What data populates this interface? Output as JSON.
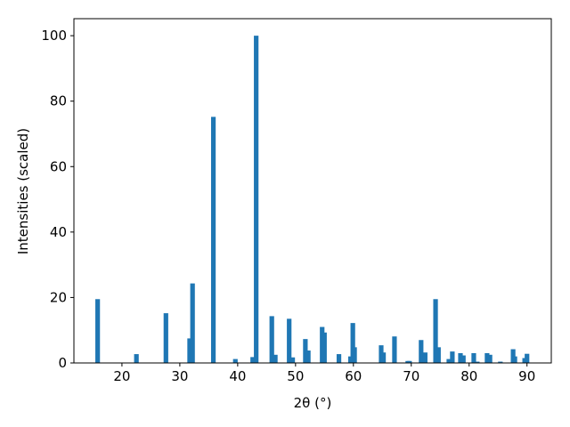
{
  "chart_data": {
    "type": "bar",
    "x_label": "2θ (°)",
    "y_label": "Intensities (scaled)",
    "color": "#1f77b4",
    "x": [
      15.8,
      22.5,
      27.6,
      31.7,
      32.2,
      35.8,
      39.6,
      42.6,
      43.2,
      45.9,
      46.5,
      48.9,
      49.5,
      51.7,
      52.2,
      54.6,
      55.0,
      57.5,
      59.5,
      59.9,
      60.2,
      64.8,
      65.2,
      67.1,
      69.4,
      69.7,
      71.7,
      72.4,
      74.2,
      74.7,
      76.5,
      77.1,
      78.5,
      79.0,
      80.8,
      81.4,
      83.1,
      83.6,
      85.4,
      87.6,
      87.9,
      89.6,
      90.0
    ],
    "values": [
      19.5,
      2.7,
      15.2,
      7.5,
      24.3,
      75.2,
      1.2,
      1.8,
      100,
      14.3,
      2.5,
      13.5,
      1.7,
      7.3,
      3.8,
      11,
      9.3,
      2.7,
      2.0,
      12.2,
      4.8,
      5.4,
      3.2,
      8.1,
      0.6,
      0.6,
      7.0,
      3.2,
      19.5,
      4.8,
      1.2,
      3.5,
      3.0,
      2.3,
      3.0,
      0.4,
      3.0,
      2.5,
      0.4,
      4.2,
      2.0,
      1.5,
      2.8
    ],
    "xlim": [
      11.7,
      94.2
    ],
    "ylim": [
      0,
      105.2
    ],
    "xticks": [
      20,
      30,
      40,
      50,
      60,
      70,
      80,
      90
    ],
    "yticks": [
      0,
      20,
      40,
      60,
      80,
      100
    ]
  }
}
